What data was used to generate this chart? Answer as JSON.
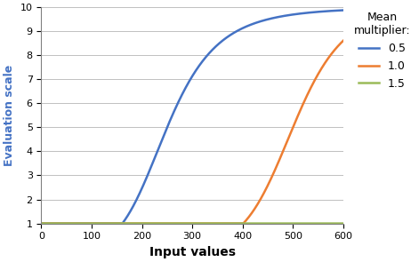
{
  "title": "",
  "xlabel": "Input values",
  "ylabel": "Evaluation scale",
  "xlim": [
    0,
    600
  ],
  "ylim": [
    1,
    10
  ],
  "xticks": [
    0,
    100,
    200,
    300,
    400,
    500,
    600
  ],
  "yticks": [
    1,
    2,
    3,
    4,
    5,
    6,
    7,
    8,
    9,
    10
  ],
  "legend_title": "Mean\nmultiplier:",
  "series": [
    {
      "label": "0.5",
      "color": "#4472C4",
      "mean_mult": 0.5
    },
    {
      "label": "1.0",
      "color": "#ED7D31",
      "mean_mult": 1.0
    },
    {
      "label": "1.5",
      "color": "#9BBB59",
      "mean_mult": 1.5
    }
  ],
  "mean": 500,
  "std": 50,
  "background_color": "#FFFFFF",
  "grid_color": "#C0C0C0"
}
